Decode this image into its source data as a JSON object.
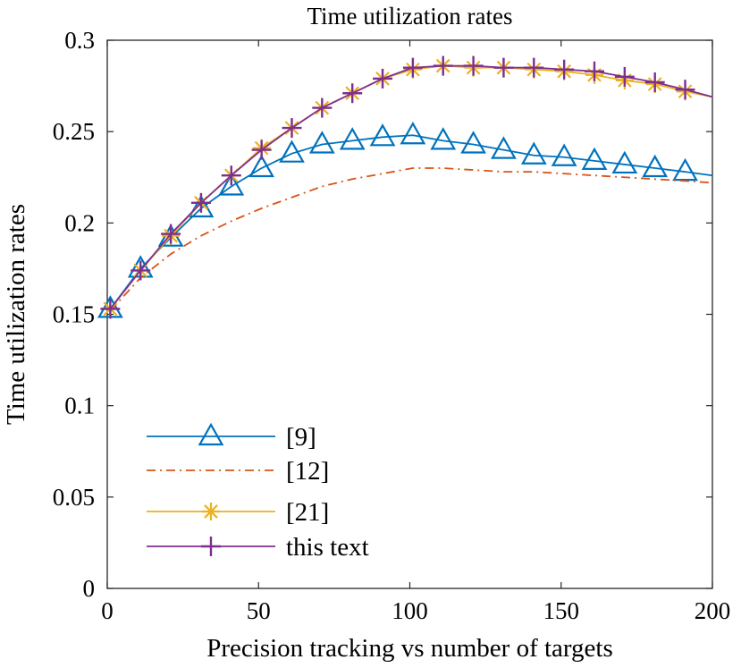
{
  "chart_data": {
    "type": "line",
    "title": "Time utilization rates",
    "xlabel": "Precision tracking vs number of targets",
    "ylabel": "Time utilization rates",
    "xlim": [
      0,
      200
    ],
    "ylim": [
      0,
      0.3
    ],
    "xticks": [
      0,
      50,
      100,
      150,
      200
    ],
    "yticks": [
      0,
      0.05,
      0.1,
      0.15,
      0.2,
      0.25,
      0.3
    ],
    "xtick_labels": [
      "0",
      "50",
      "100",
      "150",
      "200"
    ],
    "ytick_labels": [
      "0",
      "0.05",
      "0.1",
      "0.15",
      "0.2",
      "0.25",
      "0.3"
    ],
    "grid": false,
    "legend_position": "bottom-left",
    "series": [
      {
        "name": "[9]",
        "color": "#0072BD",
        "line": "solid",
        "marker": "triangle",
        "x": [
          1,
          11,
          21,
          31,
          41,
          51,
          61,
          71,
          81,
          91,
          101,
          111,
          121,
          131,
          141,
          151,
          161,
          171,
          181,
          191,
          200
        ],
        "y": [
          0.153,
          0.175,
          0.192,
          0.208,
          0.22,
          0.23,
          0.238,
          0.243,
          0.245,
          0.247,
          0.248,
          0.245,
          0.243,
          0.24,
          0.237,
          0.236,
          0.234,
          0.232,
          0.23,
          0.228,
          0.226
        ]
      },
      {
        "name": "[12]",
        "color": "#D95319",
        "line": "dashdot",
        "marker": "none",
        "x": [
          1,
          11,
          21,
          31,
          41,
          51,
          61,
          71,
          81,
          91,
          101,
          111,
          121,
          131,
          141,
          151,
          161,
          171,
          181,
          191,
          200
        ],
        "y": [
          0.152,
          0.17,
          0.183,
          0.193,
          0.201,
          0.208,
          0.214,
          0.22,
          0.224,
          0.227,
          0.23,
          0.23,
          0.229,
          0.228,
          0.228,
          0.227,
          0.226,
          0.225,
          0.224,
          0.223,
          0.222
        ]
      },
      {
        "name": "[21]",
        "color": "#EDB120",
        "line": "solid",
        "marker": "asterisk",
        "x": [
          1,
          11,
          21,
          31,
          41,
          51,
          61,
          71,
          81,
          91,
          101,
          111,
          121,
          131,
          141,
          151,
          161,
          171,
          181,
          191,
          200
        ],
        "y": [
          0.153,
          0.174,
          0.193,
          0.211,
          0.226,
          0.241,
          0.252,
          0.263,
          0.271,
          0.279,
          0.284,
          0.286,
          0.285,
          0.285,
          0.284,
          0.283,
          0.281,
          0.278,
          0.276,
          0.272,
          0.269
        ]
      },
      {
        "name": "this text",
        "color": "#7E2F8E",
        "line": "solid",
        "marker": "plus",
        "x": [
          1,
          11,
          21,
          31,
          41,
          51,
          61,
          71,
          81,
          91,
          101,
          111,
          121,
          131,
          141,
          151,
          161,
          171,
          181,
          191,
          200
        ],
        "y": [
          0.153,
          0.174,
          0.194,
          0.211,
          0.226,
          0.24,
          0.252,
          0.263,
          0.271,
          0.279,
          0.285,
          0.286,
          0.286,
          0.285,
          0.285,
          0.284,
          0.283,
          0.28,
          0.277,
          0.273,
          0.269
        ]
      }
    ]
  }
}
